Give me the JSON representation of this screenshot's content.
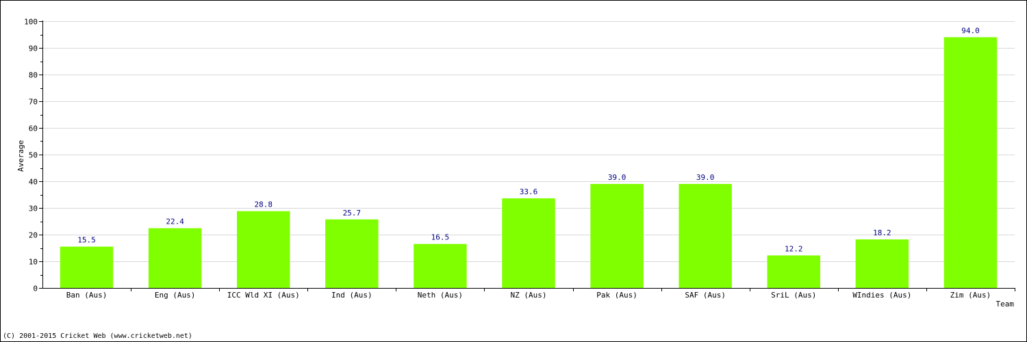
{
  "chart_data": {
    "type": "bar",
    "title": "",
    "xlabel": "Team",
    "ylabel": "Average",
    "categories": [
      "Ban (Aus)",
      "Eng (Aus)",
      "ICC Wld XI (Aus)",
      "Ind (Aus)",
      "Neth (Aus)",
      "NZ (Aus)",
      "Pak (Aus)",
      "SAF (Aus)",
      "SriL (Aus)",
      "WIndies (Aus)",
      "Zim (Aus)"
    ],
    "values": [
      15.5,
      22.4,
      28.8,
      25.7,
      16.5,
      33.6,
      39.0,
      39.0,
      12.2,
      18.2,
      94.0
    ],
    "data_labels": [
      "15.5",
      "22.4",
      "28.8",
      "25.7",
      "16.5",
      "33.6",
      "39.0",
      "39.0",
      "12.2",
      "18.2",
      "94.0"
    ],
    "ylim": [
      0,
      100
    ],
    "yticks": [
      0,
      10,
      20,
      30,
      40,
      50,
      60,
      70,
      80,
      90,
      100
    ],
    "grid": true,
    "legend": "none",
    "bar_color": "#80ff00",
    "label_color": "#000080"
  },
  "footer": {
    "copyright": "(C) 2001-2015 Cricket Web (www.cricketweb.net)"
  }
}
